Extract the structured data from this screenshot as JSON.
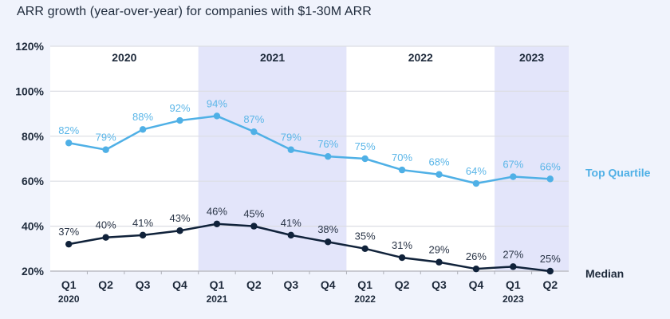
{
  "chart_data": {
    "type": "line",
    "title": "ARR growth (year-over-year) for companies with $1-30M ARR",
    "xlabel": "",
    "ylabel": "",
    "ylim": [
      20,
      120
    ],
    "yticks": [
      "120%",
      "100%",
      "80%",
      "60%",
      "40%",
      "20%"
    ],
    "ytick_values": [
      120,
      100,
      80,
      60,
      40,
      20
    ],
    "grid": true,
    "x": [
      "Q1",
      "Q2",
      "Q3",
      "Q4",
      "Q1",
      "Q2",
      "Q3",
      "Q4",
      "Q1",
      "Q2",
      "Q3",
      "Q4",
      "Q1",
      "Q2"
    ],
    "x_year_labels": [
      "2020",
      "",
      "",
      "",
      "2021",
      "",
      "",
      "",
      "2022",
      "",
      "",
      "",
      "2023",
      ""
    ],
    "year_bands": [
      {
        "label": "2020",
        "quarters": 4,
        "shaded": false
      },
      {
        "label": "2021",
        "quarters": 4,
        "shaded": true
      },
      {
        "label": "2022",
        "quarters": 4,
        "shaded": false
      },
      {
        "label": "2023",
        "quarters": 2,
        "shaded": true
      }
    ],
    "series": [
      {
        "name": "Top Quartile",
        "color": "#4fb0e6",
        "values": [
          82,
          79,
          88,
          92,
          94,
          87,
          79,
          76,
          75,
          70,
          68,
          64,
          67,
          66
        ],
        "labels": [
          "82%",
          "79%",
          "88%",
          "92%",
          "94%",
          "87%",
          "79%",
          "76%",
          "75%",
          "70%",
          "68%",
          "64%",
          "67%",
          "66%"
        ]
      },
      {
        "name": "Median",
        "color": "#10223a",
        "values": [
          37,
          40,
          41,
          43,
          46,
          45,
          41,
          38,
          35,
          31,
          29,
          26,
          27,
          25
        ],
        "labels": [
          "37%",
          "40%",
          "41%",
          "43%",
          "46%",
          "45%",
          "41%",
          "38%",
          "35%",
          "31%",
          "29%",
          "26%",
          "27%",
          "25%"
        ]
      }
    ],
    "legend": "right",
    "colors": {
      "background": "#f0f3fc",
      "plot": "#ffffff",
      "band": "#e3e5fa",
      "grid": "#dcdde3"
    }
  }
}
